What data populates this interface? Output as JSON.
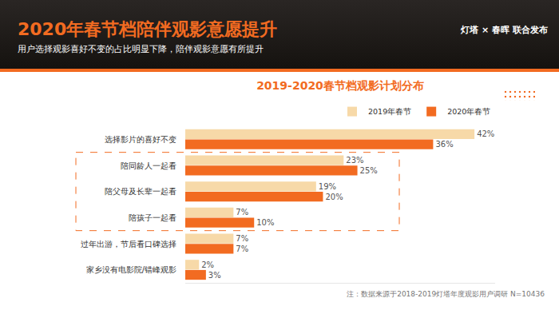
{
  "header": {
    "title": "2020年春节档陪伴观影意愿提升",
    "subtitle": "用户选择观影喜好不变的占比明显下降，陪伴观影意愿有所提升",
    "brand": "灯塔 × 春晖 联合发布"
  },
  "note": "注：数据来源于2018-2019灯塔年度观影用户调研 N=10436",
  "chart_data": {
    "type": "bar",
    "title": "2019-2020春节档观影计划分布",
    "orientation": "horizontal",
    "categories": [
      "选择影片的喜好不变",
      "陪同龄人一起看",
      "陪父母及长辈一起看",
      "陪孩子一起看",
      "过年出游，节后看口碑选择",
      "家乡没有电影院/错峰观影"
    ],
    "series": [
      {
        "name": "2019年春节",
        "color": "#f7d9a8",
        "values": [
          42,
          23,
          19,
          7,
          7,
          2
        ],
        "value_labels": [
          "42%",
          "23%",
          "19%",
          "7%",
          "7%",
          "2%"
        ]
      },
      {
        "name": "2020年春节",
        "color": "#f26b21",
        "values": [
          36,
          25,
          20,
          10,
          7,
          3
        ],
        "value_labels": [
          "36%",
          "25%",
          "20%",
          "10%",
          "7%",
          "3%"
        ]
      }
    ],
    "xlim": [
      0,
      45
    ],
    "xticks": [],
    "grid": false,
    "data_labels": true,
    "tick_labels": "y",
    "legend": "top right"
  }
}
